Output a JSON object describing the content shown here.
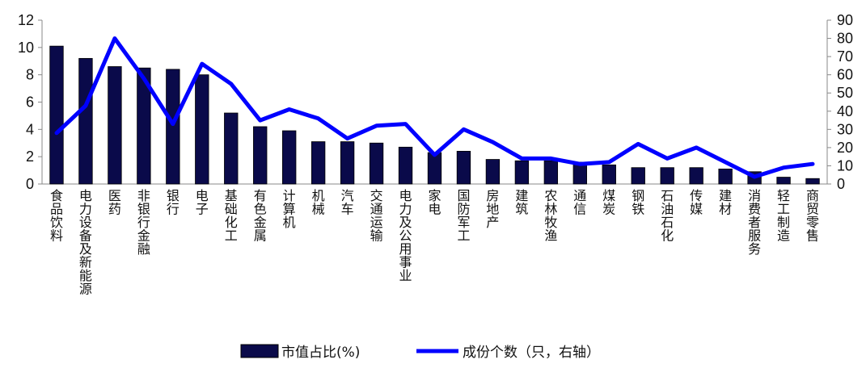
{
  "chart_data": {
    "type": "bar+line",
    "categories": [
      "食品饮料",
      "电力设备及新能源",
      "医药",
      "非银行金融",
      "银行",
      "电子",
      "基础化工",
      "有色金属",
      "计算机",
      "机械",
      "汽车",
      "交通运输",
      "电力及公用事业",
      "家电",
      "国防军工",
      "房地产",
      "建筑",
      "农林牧渔",
      "通信",
      "煤炭",
      "钢铁",
      "石油石化",
      "传媒",
      "建材",
      "消费者服务",
      "轻工制造",
      "商贸零售"
    ],
    "series": [
      {
        "name": "市值占比(%)",
        "type": "bar",
        "axis": "left",
        "values": [
          10.1,
          9.2,
          8.6,
          8.5,
          8.4,
          8.0,
          5.2,
          4.2,
          3.9,
          3.1,
          3.1,
          3.0,
          2.7,
          2.3,
          2.4,
          1.8,
          1.7,
          1.7,
          1.6,
          1.4,
          1.2,
          1.2,
          1.2,
          1.1,
          0.9,
          0.5,
          0.4
        ],
        "color": "#0a0a4a"
      },
      {
        "name": "成份个数（只，右轴）",
        "type": "line",
        "axis": "right",
        "values": [
          28,
          43,
          80,
          58,
          33,
          66,
          55,
          35,
          41,
          36,
          25,
          32,
          33,
          16,
          30,
          23,
          14,
          14,
          11,
          12,
          22,
          14,
          20,
          12,
          4,
          9,
          11
        ],
        "color": "#0000ff"
      }
    ],
    "y_left": {
      "min": 0,
      "max": 12,
      "step": 2,
      "ticks": [
        "0",
        "2",
        "4",
        "6",
        "8",
        "10",
        "12"
      ]
    },
    "y_right": {
      "min": 0,
      "max": 90,
      "step": 10,
      "ticks": [
        "0",
        "10",
        "20",
        "30",
        "40",
        "50",
        "60",
        "70",
        "80",
        "90"
      ]
    },
    "legend_position": "bottom-center",
    "grid": false
  }
}
